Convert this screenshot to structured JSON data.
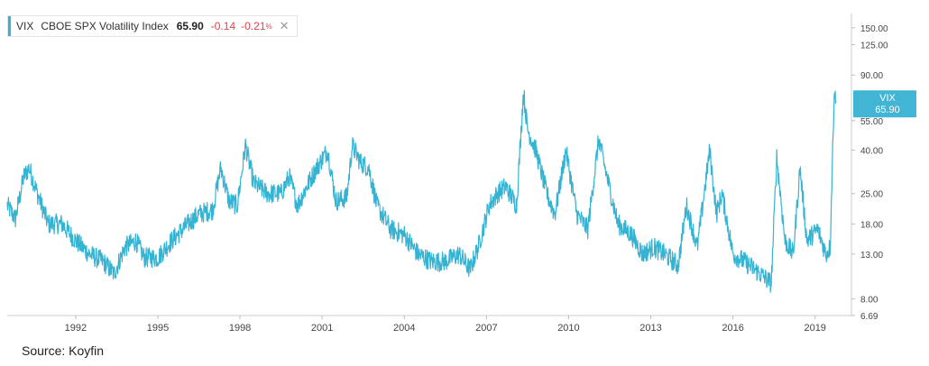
{
  "legend": {
    "symbol": "VIX",
    "name": "CBOE SPX Volatility Index",
    "last": "65.90",
    "change": "-0.14",
    "change_pct": "-0.21",
    "change_pct_unit": "%",
    "close_glyph": "✕"
  },
  "source_text": "Source: Koyfin",
  "colors": {
    "line": "#35b3d2",
    "change": "#e2424d",
    "badge_bg": "#42b5d4",
    "badge_text": "#ffffff"
  },
  "chart_data": {
    "type": "line",
    "y_scale": "log",
    "ylim": [
      6.69,
      175
    ],
    "y_ticks": [
      "150.00",
      "125.00",
      "90.00",
      "55.00",
      "40.00",
      "25.00",
      "18.00",
      "13.00",
      "8.00",
      "6.69"
    ],
    "x_ticks": [
      "1992",
      "1995",
      "1998",
      "2001",
      "2004",
      "2007",
      "2010",
      "2013",
      "2016",
      "2019"
    ],
    "xlim": [
      1990.0,
      2020.3
    ],
    "grid": false,
    "badge": {
      "label": "VIX",
      "value": "65.90"
    },
    "series": [
      {
        "name": "VIX",
        "points": [
          [
            1990.0,
            22
          ],
          [
            1990.3,
            19
          ],
          [
            1990.6,
            30
          ],
          [
            1990.8,
            33
          ],
          [
            1991.1,
            25
          ],
          [
            1991.5,
            18
          ],
          [
            1992.0,
            18
          ],
          [
            1992.5,
            15
          ],
          [
            1993.0,
            13
          ],
          [
            1993.5,
            12
          ],
          [
            1993.9,
            10.5
          ],
          [
            1994.3,
            14
          ],
          [
            1994.7,
            15
          ],
          [
            1995.0,
            12.5
          ],
          [
            1995.5,
            12.5
          ],
          [
            1996.0,
            15
          ],
          [
            1996.6,
            18
          ],
          [
            1997.0,
            20
          ],
          [
            1997.5,
            21
          ],
          [
            1997.8,
            33
          ],
          [
            1998.1,
            23
          ],
          [
            1998.4,
            22
          ],
          [
            1998.7,
            42
          ],
          [
            1999.0,
            28
          ],
          [
            1999.5,
            25
          ],
          [
            2000.0,
            25
          ],
          [
            2000.3,
            30
          ],
          [
            2000.6,
            22
          ],
          [
            2001.0,
            28
          ],
          [
            2001.3,
            33
          ],
          [
            2001.7,
            40
          ],
          [
            2002.0,
            23
          ],
          [
            2002.4,
            24
          ],
          [
            2002.6,
            42
          ],
          [
            2002.9,
            35
          ],
          [
            2003.2,
            33
          ],
          [
            2003.5,
            22
          ],
          [
            2004.0,
            17
          ],
          [
            2004.5,
            16
          ],
          [
            2005.0,
            13
          ],
          [
            2005.5,
            12
          ],
          [
            2006.0,
            12
          ],
          [
            2006.5,
            13
          ],
          [
            2006.9,
            11
          ],
          [
            2007.2,
            14
          ],
          [
            2007.6,
            22
          ],
          [
            2007.9,
            25
          ],
          [
            2008.2,
            27
          ],
          [
            2008.6,
            22
          ],
          [
            2008.85,
            75
          ],
          [
            2009.0,
            50
          ],
          [
            2009.3,
            40
          ],
          [
            2009.7,
            25
          ],
          [
            2010.0,
            20
          ],
          [
            2010.4,
            40
          ],
          [
            2010.8,
            20
          ],
          [
            2011.2,
            17
          ],
          [
            2011.6,
            45
          ],
          [
            2011.9,
            30
          ],
          [
            2012.3,
            18
          ],
          [
            2012.8,
            16
          ],
          [
            2013.2,
            13
          ],
          [
            2013.6,
            14
          ],
          [
            2014.0,
            13
          ],
          [
            2014.5,
            11.5
          ],
          [
            2014.8,
            22
          ],
          [
            2015.2,
            14
          ],
          [
            2015.65,
            40
          ],
          [
            2015.9,
            20
          ],
          [
            2016.1,
            25
          ],
          [
            2016.5,
            13
          ],
          [
            2016.9,
            12
          ],
          [
            2017.3,
            11
          ],
          [
            2017.9,
            9.5
          ],
          [
            2018.1,
            37
          ],
          [
            2018.4,
            15
          ],
          [
            2018.7,
            13
          ],
          [
            2018.95,
            33
          ],
          [
            2019.2,
            15
          ],
          [
            2019.6,
            17
          ],
          [
            2019.9,
            13
          ],
          [
            2020.05,
            14
          ],
          [
            2020.2,
            78
          ],
          [
            2020.25,
            65.9
          ]
        ]
      }
    ]
  }
}
